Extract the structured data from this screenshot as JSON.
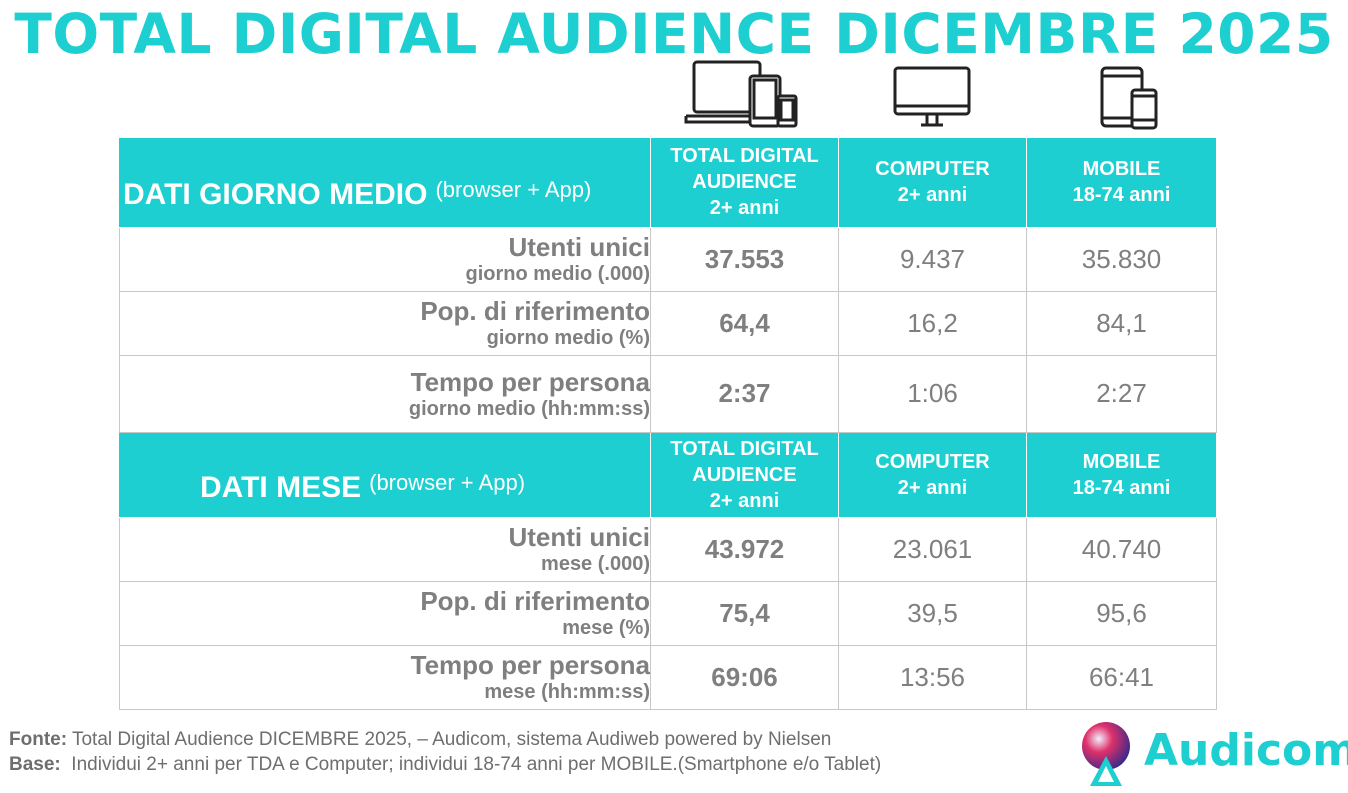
{
  "title": "TOTAL DIGITAL AUDIENCE DICEMBRE 2025",
  "icons": [
    "multi-device-icon",
    "desktop-monitor-icon",
    "tablet-smartphone-icon"
  ],
  "colors": {
    "accent": "#1dcfd0",
    "text": "#808080"
  },
  "columns": [
    {
      "line1": "TOTAL DIGITAL",
      "line2": "AUDIENCE",
      "line3": "2+ anni"
    },
    {
      "line1": "COMPUTER",
      "line2": "2+ anni"
    },
    {
      "line1": "MOBILE",
      "line2": "18-74 anni"
    }
  ],
  "sections": [
    {
      "title": "DATI GIORNO MEDIO",
      "note": "(browser + App)",
      "rows": [
        {
          "label": "Utenti unici",
          "sub": "giorno medio (.000)",
          "values": [
            "37.553",
            "9.437",
            "35.830"
          ]
        },
        {
          "label": "Pop. di riferimento",
          "sub": "giorno medio (%)",
          "values": [
            "64,4",
            "16,2",
            "84,1"
          ]
        },
        {
          "label": "Tempo per persona",
          "sub": "giorno medio (hh:mm:ss)",
          "values": [
            "2:37",
            "1:06",
            "2:27"
          ]
        }
      ]
    },
    {
      "title": "DATI MESE",
      "note": "(browser + App)",
      "rows": [
        {
          "label": "Utenti unici",
          "sub": "mese (.000)",
          "values": [
            "43.972",
            "23.061",
            "40.740"
          ]
        },
        {
          "label": "Pop. di riferimento",
          "sub": "mese (%)",
          "values": [
            "75,4",
            "39,5",
            "95,6"
          ]
        },
        {
          "label": "Tempo per persona",
          "sub": "mese (hh:mm:ss)",
          "values": [
            "69:06",
            "13:56",
            "66:41"
          ]
        }
      ]
    }
  ],
  "footer": {
    "fonte_label": "Fonte:",
    "fonte_text": " Total Digital Audience DICEMBRE 2025, – Audicom, sistema Audiweb powered by Nielsen",
    "base_label": "Base:",
    "base_text": "  Individui 2+ anni per TDA e Computer; individui 18-74 anni per MOBILE.(Smartphone e/o Tablet)"
  },
  "logo": {
    "text": "Audicom"
  }
}
